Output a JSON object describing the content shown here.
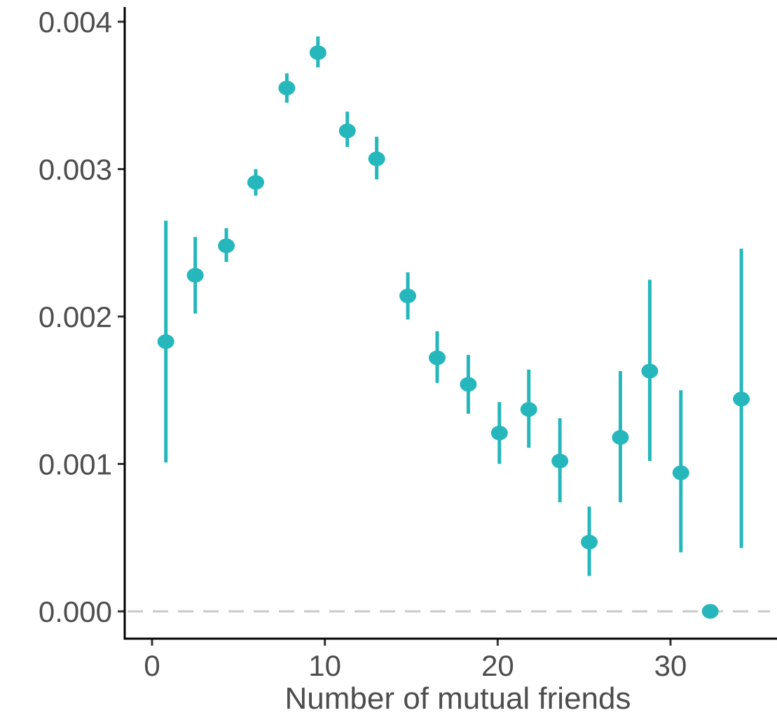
{
  "chart_data": {
    "type": "scatter",
    "title": "",
    "xlabel": "Number of mutual friends",
    "ylabel": "",
    "xlim": [
      -2,
      36
    ],
    "ylim": [
      -0.0002,
      0.0041
    ],
    "x_ticks": [
      0,
      10,
      20,
      30
    ],
    "x_tick_labels": [
      "0",
      "10",
      "20",
      "30"
    ],
    "y_ticks": [
      0,
      0.001,
      0.002,
      0.003,
      0.004
    ],
    "y_tick_labels": [
      "0.000",
      "0.001",
      "0.002",
      "0.003",
      "0.004"
    ],
    "reference_line": {
      "y": 0,
      "style": "dashed",
      "color": "#c8c8c8"
    },
    "grid": false,
    "colors": {
      "series": "#26b7bc",
      "axis": "#000000",
      "text": "#4d4d4d"
    },
    "series": [
      {
        "points": [
          {
            "x": 0.8,
            "y": 0.00183,
            "lower": 0.00101,
            "upper": 0.00265
          },
          {
            "x": 2.5,
            "y": 0.00228,
            "lower": 0.00202,
            "upper": 0.00254
          },
          {
            "x": 4.3,
            "y": 0.00248,
            "lower": 0.00237,
            "upper": 0.0026
          },
          {
            "x": 6.0,
            "y": 0.00291,
            "lower": 0.00282,
            "upper": 0.003
          },
          {
            "x": 7.8,
            "y": 0.00355,
            "lower": 0.00345,
            "upper": 0.00365
          },
          {
            "x": 9.6,
            "y": 0.00379,
            "lower": 0.00369,
            "upper": 0.0039
          },
          {
            "x": 11.3,
            "y": 0.00326,
            "lower": 0.00315,
            "upper": 0.00339
          },
          {
            "x": 13.0,
            "y": 0.00307,
            "lower": 0.00293,
            "upper": 0.00322
          },
          {
            "x": 14.8,
            "y": 0.00214,
            "lower": 0.00198,
            "upper": 0.0023
          },
          {
            "x": 16.5,
            "y": 0.00172,
            "lower": 0.00155,
            "upper": 0.0019
          },
          {
            "x": 18.3,
            "y": 0.00154,
            "lower": 0.00134,
            "upper": 0.00174
          },
          {
            "x": 20.1,
            "y": 0.00121,
            "lower": 0.001,
            "upper": 0.00142
          },
          {
            "x": 21.8,
            "y": 0.00137,
            "lower": 0.00111,
            "upper": 0.00164
          },
          {
            "x": 23.6,
            "y": 0.00102,
            "lower": 0.00074,
            "upper": 0.00131
          },
          {
            "x": 25.3,
            "y": 0.00047,
            "lower": 0.00024,
            "upper": 0.00071
          },
          {
            "x": 27.1,
            "y": 0.00118,
            "lower": 0.00074,
            "upper": 0.00163
          },
          {
            "x": 28.8,
            "y": 0.00163,
            "lower": 0.00102,
            "upper": 0.00225
          },
          {
            "x": 30.6,
            "y": 0.00094,
            "lower": 0.0004,
            "upper": 0.0015
          },
          {
            "x": 32.3,
            "y": 0.0,
            "lower": 0.0,
            "upper": 0.0
          },
          {
            "x": 34.1,
            "y": 0.00144,
            "lower": 0.00043,
            "upper": 0.00246
          }
        ]
      }
    ]
  }
}
